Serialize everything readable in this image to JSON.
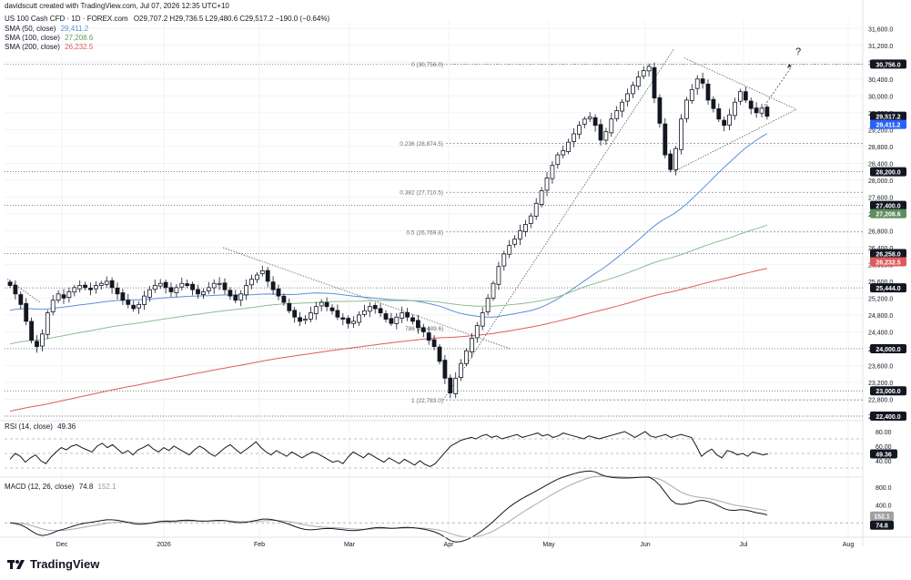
{
  "header": {
    "credit": "davidscutt created with TradingView.com, Jul 07, 2026 12:35 UTC+10",
    "symbol": "US 100 Cash CFD · 1D · FOREX.com",
    "ohlc": "O29,707.2 H29,736.5 L29,480.6 C29,517.2 −190.0 (−0.64%)",
    "sma50_label": "SMA (50, close)",
    "sma50_value": "29,411.2",
    "sma100_label": "SMA (100, close)",
    "sma100_value": "27,208.6",
    "sma200_label": "SMA (200, close)",
    "sma200_value": "26,232.5"
  },
  "colors": {
    "up": "#ffffff",
    "down": "#131722",
    "sma50": "#5b8fd6",
    "sma100": "#8fbc8f",
    "sma200": "#e05a5a",
    "grid": "#f0f3fa",
    "axis_text": "#131722",
    "dotted": "#555555"
  },
  "price_axis": {
    "ticks": [
      "31,600.0",
      "31,200.0",
      "30,800.0",
      "30,400.0",
      "30,000.0",
      "29,600.0",
      "29,200.0",
      "28,800.0",
      "28,400.0",
      "28,000.0",
      "27,600.0",
      "27,200.0",
      "26,800.0",
      "26,400.0",
      "26,000.0",
      "25,600.0",
      "25,200.0",
      "24,800.0",
      "24,400.0",
      "24,000.0",
      "23,600.0",
      "23,200.0",
      "22,800.0",
      "22,400.0"
    ],
    "badges": [
      {
        "label": "30,756.0",
        "value": 30756,
        "style": "dark"
      },
      {
        "label": "29,517.2",
        "value": 29517.2,
        "style": "dark"
      },
      {
        "label": "29,411.2",
        "value": 29411.2,
        "style": "blue"
      },
      {
        "label": "28,200.0",
        "value": 28200,
        "style": "dark"
      },
      {
        "label": "27,400.0",
        "value": 27400,
        "style": "dark"
      },
      {
        "label": "27,208.6",
        "value": 27208.6,
        "style": "green"
      },
      {
        "label": "26,258.0",
        "value": 26258,
        "style": "dark"
      },
      {
        "label": "26,232.5",
        "value": 26232.5,
        "style": "red"
      },
      {
        "label": "25,444.0",
        "value": 25444,
        "style": "dark"
      },
      {
        "label": "24,000.0",
        "value": 24000,
        "style": "dark"
      },
      {
        "label": "23,000.0",
        "value": 23000,
        "style": "dark"
      },
      {
        "label": "22,400.0",
        "value": 22400,
        "style": "dark"
      }
    ]
  },
  "fib_levels": [
    {
      "label": "0 (30,756.0)",
      "value": 30756
    },
    {
      "label": "0.236 (28,874.5)",
      "value": 28874.5
    },
    {
      "label": "0.382 (27,710.5)",
      "value": 27710.5
    },
    {
      "label": "0.5 (26,769.8)",
      "value": 26769.8
    },
    {
      "label": "1 (22,783.0)",
      "value": 22783
    }
  ],
  "fib_extra_label": "786 (24,489.6)",
  "horizontal_levels": [
    30756,
    28200,
    27400,
    26258,
    25444,
    24000,
    23000,
    22400
  ],
  "question_mark": "?",
  "time_axis": [
    "Dec",
    "2026",
    "Feb",
    "Mar",
    "Apr",
    "May",
    "Jun",
    "Jul",
    "Aug"
  ],
  "rsi": {
    "label": "RSI (14, close)",
    "value": "49.36",
    "ticks": [
      "80.00",
      "60.00",
      "40.00"
    ],
    "badge": "49.36",
    "series": [
      42,
      50,
      46,
      38,
      44,
      48,
      40,
      36,
      45,
      52,
      58,
      55,
      60,
      62,
      58,
      55,
      52,
      60,
      64,
      58,
      62,
      56,
      50,
      54,
      48,
      55,
      58,
      62,
      56,
      52,
      58,
      54,
      60,
      56,
      52,
      48,
      55,
      60,
      56,
      50,
      46,
      52,
      58,
      62,
      56,
      50,
      55,
      60,
      66,
      58,
      52,
      48,
      54,
      50,
      46,
      52,
      48,
      44,
      48,
      52,
      50,
      46,
      42,
      38,
      40,
      36,
      45,
      52,
      48,
      44,
      50,
      46,
      42,
      38,
      44,
      40,
      36,
      42,
      38,
      34,
      40,
      35,
      32,
      36,
      44,
      52,
      60,
      64,
      68,
      70,
      72,
      70,
      74,
      76,
      72,
      74,
      70,
      72,
      74,
      76,
      72,
      74,
      76,
      78,
      74,
      76,
      72,
      74,
      78,
      76,
      74,
      72,
      70,
      74,
      72,
      70,
      72,
      74,
      76,
      78,
      80,
      76,
      72,
      76,
      80,
      74,
      72,
      74,
      76,
      72,
      74,
      76,
      74,
      72,
      60,
      46,
      52,
      56,
      48,
      44,
      54,
      52,
      48,
      50,
      46,
      52,
      50,
      48,
      49.36
    ]
  },
  "macd": {
    "label": "MACD (12, 26, close)",
    "value_macd": "74.8",
    "value_signal": "152.1",
    "ticks": [
      "800.0",
      "400.0"
    ],
    "badges": [
      {
        "label": "152.1",
        "style": "gray"
      },
      {
        "label": "74.8",
        "style": "dark"
      }
    ]
  },
  "chart_data": {
    "type": "candlestick",
    "title": "US 100 Cash CFD · 1D · FOREX.com",
    "ylim": [
      22400,
      31800
    ],
    "x_labels": [
      "Dec",
      "2026",
      "Feb",
      "Mar",
      "Apr",
      "May",
      "Jun",
      "Jul",
      "Aug"
    ],
    "close": [
      25500,
      25300,
      25050,
      24650,
      24200,
      24050,
      24350,
      24850,
      25150,
      25300,
      25200,
      25350,
      25450,
      25500,
      25450,
      25400,
      25500,
      25550,
      25600,
      25450,
      25300,
      25150,
      25050,
      24950,
      25050,
      25250,
      25400,
      25500,
      25550,
      25450,
      25350,
      25450,
      25550,
      25500,
      25400,
      25300,
      25350,
      25450,
      25550,
      25550,
      25400,
      25250,
      25150,
      25300,
      25500,
      25650,
      25750,
      25850,
      25600,
      25400,
      25250,
      25100,
      24900,
      24750,
      24650,
      24700,
      24850,
      25000,
      25100,
      25000,
      24900,
      24750,
      24700,
      24600,
      24650,
      24800,
      24900,
      25000,
      24950,
      24850,
      24700,
      24600,
      24750,
      24850,
      24750,
      24650,
      24500,
      24400,
      24200,
      24050,
      23700,
      23300,
      22950,
      23300,
      23650,
      23950,
      24250,
      24550,
      24850,
      25200,
      25550,
      25950,
      26250,
      26450,
      26600,
      26800,
      26950,
      27150,
      27450,
      27750,
      28050,
      28350,
      28600,
      28700,
      28900,
      29100,
      29300,
      29450,
      29500,
      29300,
      28950,
      29150,
      29450,
      29650,
      29850,
      30050,
      30250,
      30450,
      30600,
      30700,
      29950,
      29350,
      28600,
      28250,
      28750,
      29450,
      29900,
      30150,
      30400,
      30300,
      29900,
      29700,
      29450,
      29300,
      29550,
      29850,
      30100,
      29900,
      29700,
      29600,
      29707,
      29517
    ],
    "open_offsets": "open of each candle = previous close",
    "sma50_label": "SMA (50, close)",
    "sma100_label": "SMA (100, close)",
    "sma200_label": "SMA (200, close)"
  }
}
